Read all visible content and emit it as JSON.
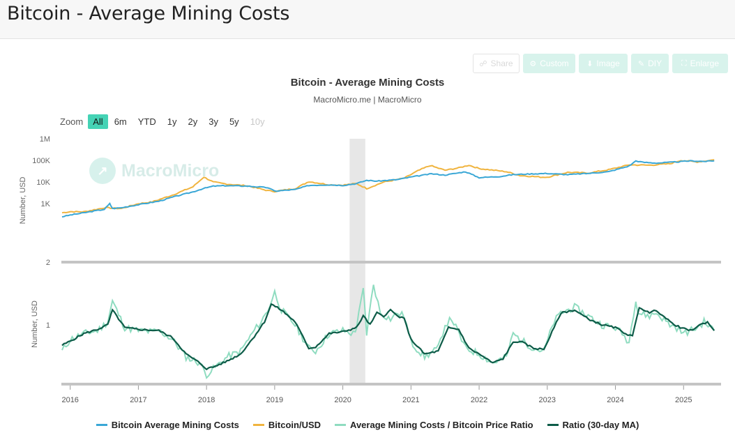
{
  "page": {
    "title": "Bitcoin - Average Mining Costs"
  },
  "toolbar": {
    "share": "Share",
    "custom": "Custom",
    "image": "Image",
    "diy": "DIY",
    "enlarge": "Enlarge"
  },
  "zoom": {
    "label": "Zoom",
    "options": [
      "All",
      "6m",
      "YTD",
      "1y",
      "2y",
      "3y",
      "5y",
      "10y"
    ],
    "selected": "All",
    "disabled": [
      "10y"
    ]
  },
  "watermark": "MacroMicro",
  "colors": {
    "cost": "#3aa7d6",
    "price": "#f0b43f",
    "ratio": "#8fdcc0",
    "ma": "#0d5c48",
    "shade": "#e7e7e7",
    "divider": "#c4c4c4"
  },
  "chart_data": {
    "type": "line",
    "title": "Bitcoin - Average Mining Costs",
    "subtitle": "MacroMicro.me | MacroMicro",
    "x_axis": {
      "ticks": [
        "2016",
        "2017",
        "2018",
        "2019",
        "2020",
        "2021",
        "2022",
        "2023",
        "2024",
        "2025"
      ],
      "range": [
        2015.87,
        2025.55
      ]
    },
    "shaded_region": [
      2020.1,
      2020.33
    ],
    "panels": [
      {
        "ylabel": "Number, USD",
        "scale": "log",
        "y_ticks": [
          "2",
          "1K",
          "10K",
          "100K",
          "1M"
        ],
        "ylim": [
          2,
          1000000
        ],
        "series": [
          {
            "name": "Bitcoin Average Mining Costs",
            "color_key": "cost",
            "x": [
              2015.88,
              2016.0,
              2016.2,
              2016.5,
              2016.58,
              2016.62,
              2016.75,
              2017.0,
              2017.3,
              2017.5,
              2017.8,
              2017.95,
              2018.1,
              2018.3,
              2018.6,
              2018.9,
              2019.0,
              2019.3,
              2019.5,
              2019.8,
              2020.0,
              2020.2,
              2020.35,
              2020.5,
              2020.8,
              2021.0,
              2021.3,
              2021.5,
              2021.8,
              2022.0,
              2022.3,
              2022.5,
              2022.8,
              2023.0,
              2023.3,
              2023.6,
              2023.9,
              2024.2,
              2024.3,
              2024.4,
              2024.6,
              2024.9,
              2025.1,
              2025.3,
              2025.45
            ],
            "y": [
              250,
              300,
              380,
              550,
              1000,
              600,
              650,
              900,
              1300,
              2000,
              3500,
              5000,
              6500,
              6800,
              6500,
              5500,
              3800,
              4500,
              7000,
              7500,
              7000,
              8500,
              12000,
              11000,
              13000,
              17000,
              24000,
              21000,
              30000,
              16000,
              18000,
              22000,
              24000,
              25000,
              22000,
              25000,
              30000,
              55000,
              95000,
              82000,
              75000,
              85000,
              95000,
              90000,
              95000
            ]
          },
          {
            "name": "Bitcoin/USD",
            "color_key": "price",
            "x": [
              2015.88,
              2016.0,
              2016.2,
              2016.5,
              2016.75,
              2017.0,
              2017.2,
              2017.5,
              2017.8,
              2017.96,
              2018.1,
              2018.3,
              2018.6,
              2018.9,
              2019.0,
              2019.3,
              2019.5,
              2019.8,
              2020.0,
              2020.2,
              2020.35,
              2020.6,
              2020.9,
              2021.1,
              2021.28,
              2021.5,
              2021.7,
              2021.85,
              2022.0,
              2022.4,
              2022.6,
              2022.9,
              2023.0,
              2023.3,
              2023.6,
              2023.9,
              2024.2,
              2024.5,
              2024.8,
              2024.96,
              2025.2,
              2025.45
            ],
            "y": [
              380,
              430,
              420,
              650,
              600,
              1000,
              1200,
              2500,
              6000,
              17000,
              10000,
              8000,
              6700,
              4000,
              3700,
              5000,
              10500,
              7500,
              7200,
              8500,
              5000,
              10000,
              15000,
              33000,
              58000,
              35000,
              45000,
              60000,
              42000,
              30000,
              20000,
              17000,
              16800,
              28000,
              26000,
              37000,
              62000,
              60000,
              70000,
              100000,
              85000,
              106000
            ]
          }
        ]
      },
      {
        "ylabel": "Number, USD",
        "scale": "linear",
        "y_ticks": [
          "1"
        ],
        "ylim": [
          0,
          1.9
        ],
        "series": [
          {
            "name": "Average Mining Costs / Bitcoin Price Ratio",
            "color_key": "ratio",
            "x": [
              2015.88,
              2016.0,
              2016.2,
              2016.4,
              2016.55,
              2016.62,
              2016.8,
              2017.0,
              2017.2,
              2017.3,
              2017.5,
              2017.7,
              2017.9,
              2018.0,
              2018.1,
              2018.3,
              2018.5,
              2018.7,
              2018.8,
              2018.9,
              2019.0,
              2019.1,
              2019.3,
              2019.5,
              2019.6,
              2019.8,
              2020.0,
              2020.15,
              2020.2,
              2020.3,
              2020.35,
              2020.45,
              2020.55,
              2020.7,
              2020.8,
              2020.9,
              2021.0,
              2021.2,
              2021.4,
              2021.5,
              2021.6,
              2021.8,
              2022.0,
              2022.2,
              2022.4,
              2022.5,
              2022.6,
              2022.8,
              2022.95,
              2023.1,
              2023.2,
              2023.4,
              2023.6,
              2023.8,
              2024.0,
              2024.1,
              2024.2,
              2024.3,
              2024.33,
              2024.5,
              2024.6,
              2024.8,
              2024.9,
              2025.0,
              2025.2,
              2025.3,
              2025.45
            ],
            "y": [
              0.55,
              0.75,
              0.85,
              0.9,
              1.05,
              1.4,
              0.95,
              0.9,
              0.88,
              0.9,
              0.75,
              0.45,
              0.35,
              0.15,
              0.25,
              0.45,
              0.55,
              0.9,
              1.05,
              1.25,
              1.55,
              1.25,
              1.0,
              0.6,
              0.55,
              0.85,
              0.9,
              0.85,
              0.95,
              1.6,
              0.85,
              1.7,
              1.2,
              1.1,
              1.2,
              1.15,
              0.7,
              0.45,
              0.6,
              1.0,
              1.1,
              0.6,
              0.5,
              0.35,
              0.45,
              0.85,
              0.75,
              0.6,
              0.55,
              1.05,
              1.2,
              1.3,
              1.15,
              1.0,
              0.95,
              0.85,
              0.7,
              1.45,
              1.2,
              1.15,
              1.2,
              1.0,
              0.95,
              0.85,
              0.95,
              1.05,
              0.9
            ]
          },
          {
            "name": "Ratio (30-day MA)",
            "color_key": "ma",
            "x": [
              2015.88,
              2016.0,
              2016.2,
              2016.4,
              2016.55,
              2016.62,
              2016.8,
              2017.0,
              2017.3,
              2017.5,
              2017.7,
              2017.9,
              2018.0,
              2018.1,
              2018.3,
              2018.5,
              2018.7,
              2018.85,
              2018.95,
              2019.1,
              2019.3,
              2019.5,
              2019.6,
              2019.8,
              2020.0,
              2020.2,
              2020.3,
              2020.4,
              2020.5,
              2020.6,
              2020.7,
              2020.8,
              2020.9,
              2021.0,
              2021.2,
              2021.4,
              2021.55,
              2021.7,
              2021.85,
              2022.0,
              2022.2,
              2022.35,
              2022.5,
              2022.6,
              2022.8,
              2022.95,
              2023.1,
              2023.2,
              2023.4,
              2023.6,
              2023.8,
              2024.0,
              2024.15,
              2024.25,
              2024.35,
              2024.5,
              2024.6,
              2024.8,
              2024.95,
              2025.1,
              2025.25,
              2025.35,
              2025.45
            ],
            "y": [
              0.65,
              0.72,
              0.85,
              0.92,
              1.0,
              1.25,
              0.95,
              0.92,
              0.9,
              0.78,
              0.5,
              0.35,
              0.25,
              0.28,
              0.38,
              0.5,
              0.8,
              1.05,
              1.35,
              1.25,
              1.05,
              0.6,
              0.62,
              0.85,
              0.88,
              0.95,
              1.15,
              1.0,
              1.2,
              1.15,
              1.25,
              1.15,
              1.1,
              0.75,
              0.5,
              0.55,
              0.95,
              0.92,
              0.6,
              0.5,
              0.35,
              0.42,
              0.7,
              0.72,
              0.6,
              0.58,
              0.95,
              1.2,
              1.25,
              1.1,
              1.0,
              0.95,
              0.85,
              0.8,
              1.3,
              1.2,
              1.25,
              1.05,
              0.95,
              0.9,
              1.0,
              1.05,
              0.9
            ]
          }
        ]
      }
    ],
    "legend": [
      "Bitcoin Average Mining Costs",
      "Bitcoin/USD",
      "Average Mining Costs / Bitcoin Price Ratio",
      "Ratio (30-day MA)"
    ],
    "legend_position": "bottom-center",
    "grid": false
  }
}
